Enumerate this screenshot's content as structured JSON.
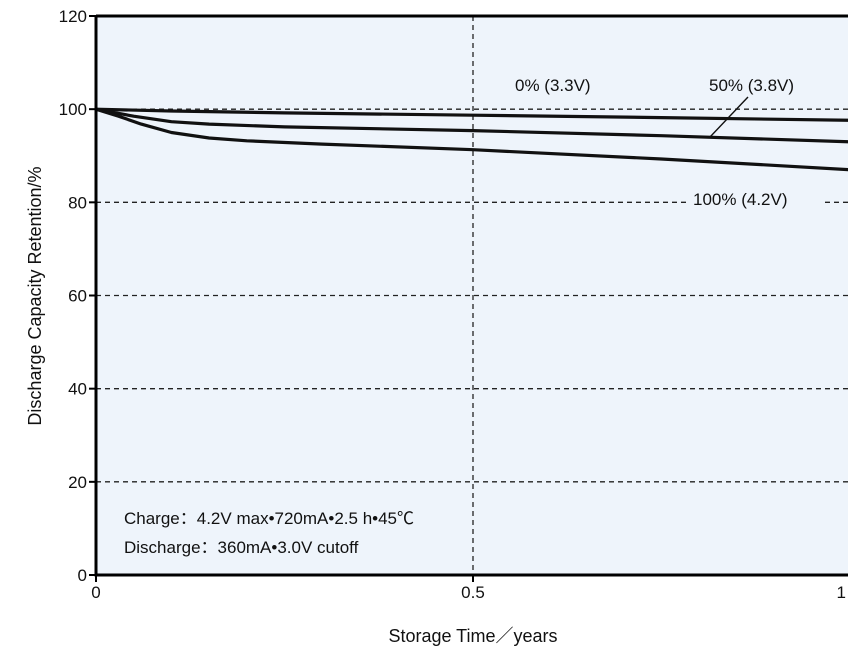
{
  "chart_data": {
    "type": "line",
    "title": "",
    "xlabel": "Storage Time／years",
    "ylabel": "Discharge Capacity Retention/%",
    "xlim": [
      0,
      1
    ],
    "ylim": [
      0,
      120
    ],
    "x_ticks": [
      {
        "value": 0,
        "label": "0"
      },
      {
        "value": 0.5,
        "label": "0.5"
      },
      {
        "value": 1,
        "label": "1"
      }
    ],
    "y_ticks": [
      {
        "value": 0,
        "label": "0"
      },
      {
        "value": 20,
        "label": "20"
      },
      {
        "value": 40,
        "label": "40"
      },
      {
        "value": 60,
        "label": "60"
      },
      {
        "value": 80,
        "label": "80"
      },
      {
        "value": 100,
        "label": "100"
      },
      {
        "value": 120,
        "label": "120"
      }
    ],
    "grid": {
      "horizontal": [
        20,
        40,
        60,
        80,
        100
      ],
      "vertical": [
        0.5
      ],
      "style": "dashed"
    },
    "background_color": "#eef4fb",
    "line_color": "#111111",
    "series": [
      {
        "name": "0% (3.3V)",
        "points": [
          [
            0,
            100
          ],
          [
            0.1,
            99.6
          ],
          [
            0.25,
            99.2
          ],
          [
            0.5,
            98.7
          ],
          [
            0.75,
            98.2
          ],
          [
            1,
            97.6
          ]
        ]
      },
      {
        "name": "50% (3.8V)",
        "points": [
          [
            0,
            100
          ],
          [
            0.05,
            98.5
          ],
          [
            0.1,
            97.3
          ],
          [
            0.15,
            96.8
          ],
          [
            0.25,
            96.2
          ],
          [
            0.5,
            95.4
          ],
          [
            0.75,
            94.3
          ],
          [
            1,
            93.0
          ]
        ]
      },
      {
        "name": "100% (4.2V)",
        "points": [
          [
            0,
            100
          ],
          [
            0.03,
            98.5
          ],
          [
            0.06,
            96.8
          ],
          [
            0.1,
            95.0
          ],
          [
            0.15,
            93.8
          ],
          [
            0.2,
            93.2
          ],
          [
            0.3,
            92.5
          ],
          [
            0.5,
            91.3
          ],
          [
            0.75,
            89.3
          ],
          [
            1,
            87.0
          ]
        ]
      }
    ],
    "annotations": {
      "series_label_0": "0% (3.3V)",
      "series_label_50": "50% (3.8V)",
      "series_label_100": "100% (4.2V)",
      "charge_note": "Charge：4.2V max•720mA•2.5 h•45℃",
      "discharge_note": "Discharge：360mA•3.0V cutoff"
    }
  }
}
